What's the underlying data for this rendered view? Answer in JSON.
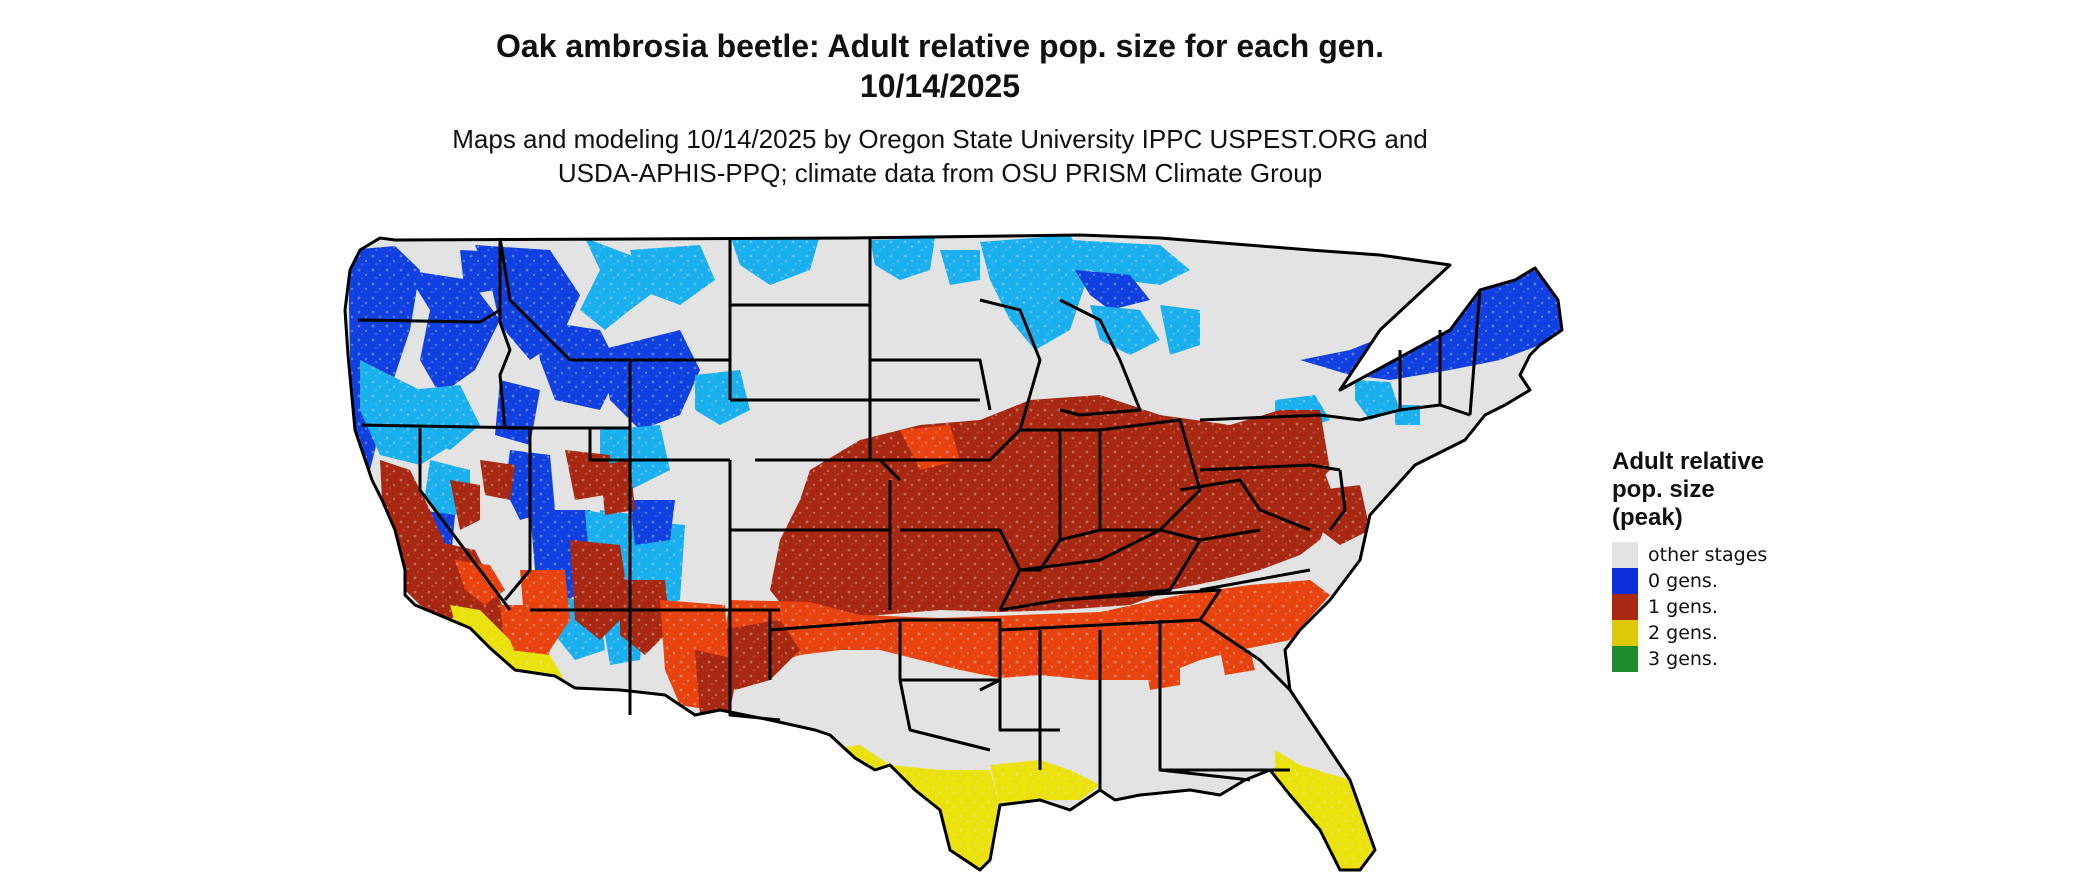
{
  "title": {
    "line1": "Oak ambrosia beetle: Adult relative pop. size for each gen.",
    "line2": "10/14/2025"
  },
  "subtitle": {
    "line1": "Maps and modeling 10/14/2025 by Oregon State University IPPC USPEST.ORG and",
    "line2": "USDA-APHIS-PPQ; climate data from OSU PRISM Climate Group"
  },
  "legend": {
    "title_line1": "Adult relative",
    "title_line2": "pop. size",
    "title_line3": "(peak)",
    "items": [
      {
        "label": "other stages",
        "color": "#e3e3e3"
      },
      {
        "label": "0 gens.",
        "color": "#0a2fd8"
      },
      {
        "label": "1 gens.",
        "color": "#a82812"
      },
      {
        "label": "2 gens.",
        "color": "#ddc80a"
      },
      {
        "label": "3 gens.",
        "color": "#1f8a2a"
      }
    ]
  },
  "palette": {
    "land": "#e3e3e3",
    "border": "#000000",
    "light_blue": "#1ab0f0",
    "blue": "#1040e0",
    "dark_red": "#a82812",
    "orange_red": "#e8430f",
    "yellow": "#eae20a"
  }
}
